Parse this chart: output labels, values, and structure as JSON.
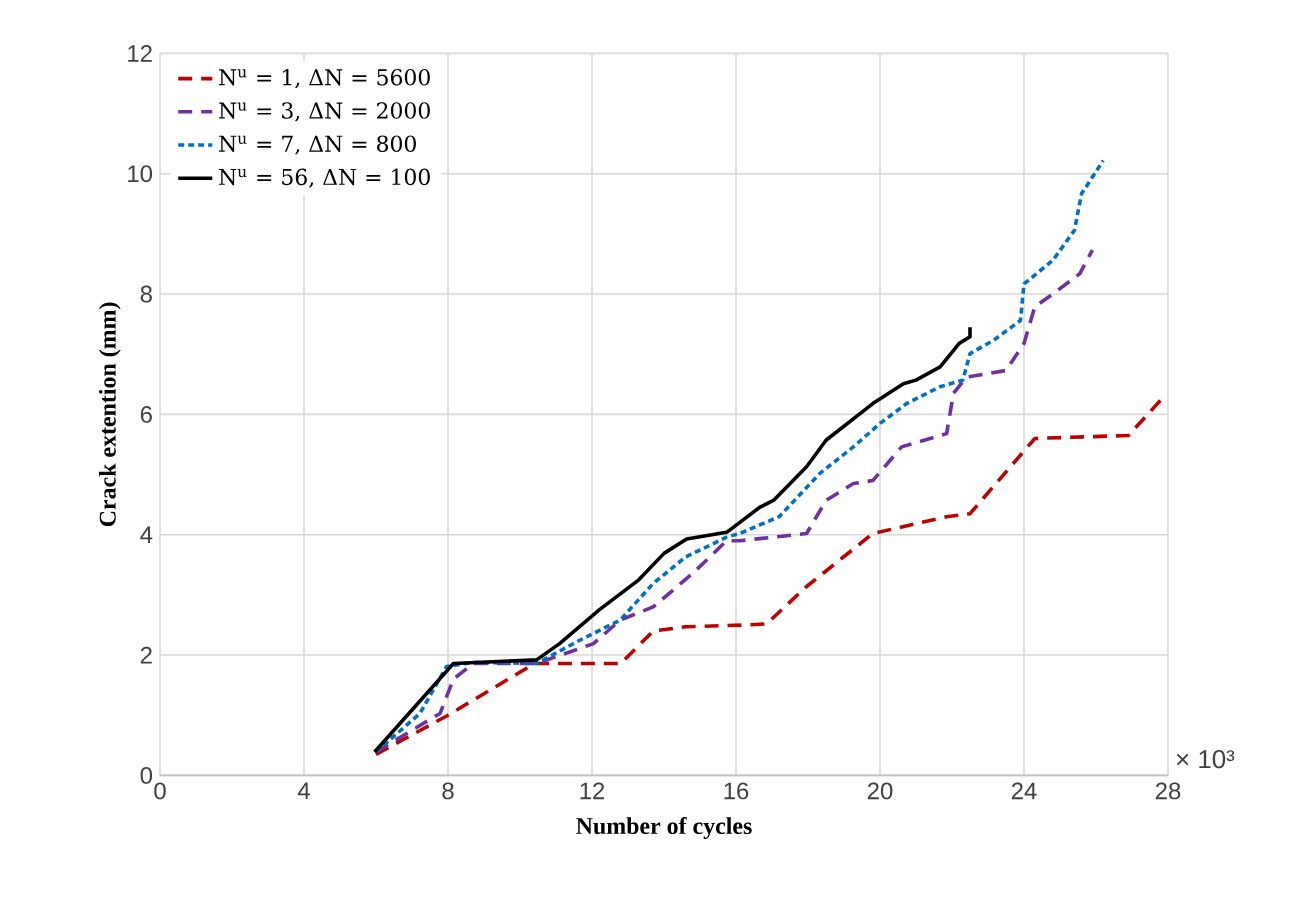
{
  "chart_data": {
    "type": "line",
    "xlabel": "Number of cycles",
    "ylabel": "Crack extention (mm)",
    "xlim": [
      0,
      28
    ],
    "xticks": [
      0,
      4,
      8,
      12,
      16,
      20,
      24,
      28
    ],
    "ylim": [
      0,
      12
    ],
    "yticks": [
      0,
      2,
      4,
      6,
      8,
      10,
      12
    ],
    "grid": true,
    "legend": "top left",
    "annotations": [
      "× 10³"
    ],
    "series": [
      {
        "name": "N$^{u}$ = 1, ΔN = 5600",
        "color": "#c00000",
        "line_style": "dashed",
        "x": [
          6.0,
          8.0,
          10.4,
          12.2,
          12.8,
          13.7,
          14.6,
          16.3,
          16.85,
          17.96,
          19.8,
          21.85,
          22.5,
          24.3,
          26.9,
          27.8
        ],
        "values": [
          0.35,
          1.0,
          1.86,
          1.86,
          1.86,
          2.4,
          2.47,
          2.5,
          2.52,
          3.14,
          4.02,
          4.3,
          4.35,
          5.6,
          5.65,
          6.24
        ]
      },
      {
        "name": "N$^{u}$ = 3, ΔN = 2000",
        "color": "#7030a0",
        "line_style": "dashed",
        "x": [
          6.0,
          7.78,
          8.15,
          8.7,
          10.46,
          12.04,
          12.78,
          13.7,
          14.8,
          15.74,
          16.1,
          17.96,
          18.5,
          19.26,
          19.8,
          20.6,
          21.85,
          22.04,
          22.4,
          23.5,
          24.0,
          24.3,
          24.8,
          25.55,
          25.9
        ],
        "values": [
          0.39,
          1.03,
          1.6,
          1.86,
          1.86,
          2.19,
          2.58,
          2.8,
          3.36,
          3.9,
          3.9,
          4.02,
          4.57,
          4.85,
          4.9,
          5.46,
          5.68,
          6.35,
          6.62,
          6.73,
          7.18,
          7.79,
          8.0,
          8.34,
          8.73
        ]
      },
      {
        "name": "N$^{u}$ = 7, ΔN = 800",
        "color": "#0070c0",
        "line_style": "dotted",
        "x": [
          6.0,
          7.22,
          7.96,
          8.7,
          10.46,
          11.67,
          12.78,
          13.7,
          14.6,
          15.74,
          16.1,
          17.2,
          18.33,
          19.26,
          20.0,
          20.74,
          21.67,
          22.3,
          22.5,
          23.15,
          23.9,
          24.0,
          24.8,
          25.4,
          25.6,
          26.2
        ],
        "values": [
          0.39,
          1.03,
          1.81,
          1.88,
          1.86,
          2.25,
          2.58,
          3.19,
          3.63,
          3.96,
          4.02,
          4.3,
          5.02,
          5.46,
          5.85,
          6.18,
          6.46,
          6.57,
          7.01,
          7.23,
          7.56,
          8.17,
          8.56,
          9.06,
          9.67,
          10.22
        ]
      },
      {
        "name": "N$^{u}$ = 56, ΔN = 100",
        "color": "#000000",
        "line_style": "solid",
        "x": [
          5.96,
          8.15,
          10.46,
          11.1,
          12.2,
          13.3,
          14.0,
          14.63,
          15.74,
          16.67,
          17.04,
          17.96,
          18.5,
          19.8,
          20.65,
          21.0,
          21.67,
          22.2,
          22.5,
          22.5
        ],
        "values": [
          0.39,
          1.86,
          1.92,
          2.19,
          2.75,
          3.25,
          3.69,
          3.93,
          4.04,
          4.46,
          4.57,
          5.13,
          5.57,
          6.18,
          6.51,
          6.57,
          6.79,
          7.18,
          7.29,
          7.45
        ]
      }
    ]
  }
}
